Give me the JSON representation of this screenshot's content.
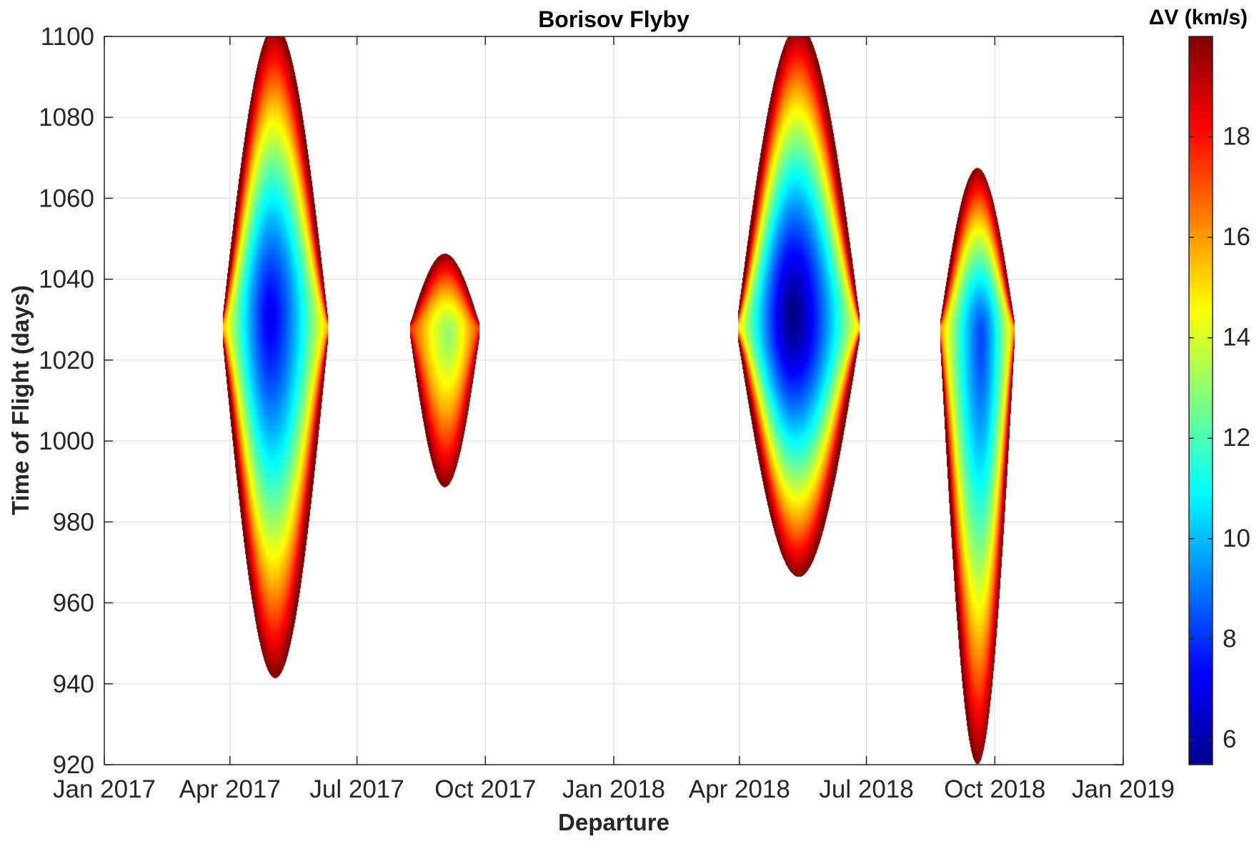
{
  "chart_data": {
    "type": "heatmap",
    "title": "Borisov Flyby",
    "xlabel": "Departure",
    "ylabel": "Time of Flight (days)",
    "x_axis": {
      "type": "date",
      "range": [
        "2017-01-01",
        "2019-01-01"
      ],
      "ticks": [
        "2017-01-01",
        "2017-04-01",
        "2017-07-01",
        "2017-10-01",
        "2018-01-01",
        "2018-04-01",
        "2018-07-01",
        "2018-10-01",
        "2019-01-01"
      ],
      "tick_labels": [
        "Jan 2017",
        "Apr 2017",
        "Jul 2017",
        "Oct 2017",
        "Jan 2018",
        "Apr 2018",
        "Jul 2018",
        "Oct 2018",
        "Jan 2019"
      ]
    },
    "y_axis": {
      "range": [
        920,
        1100
      ],
      "ticks": [
        920,
        940,
        960,
        980,
        1000,
        1020,
        1040,
        1060,
        1080,
        1100
      ]
    },
    "grid": true,
    "colormap": "jet",
    "colorbar": {
      "title": "ΔV (km/s)",
      "range": [
        5.5,
        20
      ],
      "ticks": [
        6,
        8,
        10,
        12,
        14,
        16,
        18
      ],
      "placement": "right"
    },
    "regions": [
      {
        "id": "2017-primary",
        "center": {
          "departure": "2017-06-10",
          "tof": 1028
        },
        "min_dv": 7.0,
        "max_dv": 20,
        "tof_range": [
          938,
          1100
        ],
        "departure_range": [
          "2017-03-27",
          "2017-08-07"
        ]
      },
      {
        "id": "2017-secondary",
        "center": {
          "departure": "2017-08-08",
          "tof": 1028
        },
        "min_dv": 13.0,
        "max_dv": 20,
        "tof_range": [
          990,
          1047
        ],
        "departure_range": [
          "2017-08-07",
          "2017-09-27"
        ]
      },
      {
        "id": "2018-primary",
        "center": {
          "departure": "2018-06-26",
          "tof": 1028
        },
        "min_dv": 5.5,
        "max_dv": 20,
        "tof_range": [
          964,
          1100
        ],
        "departure_range": [
          "2018-03-31",
          "2018-08-21"
        ]
      },
      {
        "id": "2018-secondary",
        "center": {
          "departure": "2018-08-23",
          "tof": 1028
        },
        "min_dv": 8.3,
        "max_dv": 20,
        "tof_range": [
          924,
          1069
        ],
        "departure_range": [
          "2018-08-21",
          "2018-10-15"
        ]
      }
    ]
  }
}
